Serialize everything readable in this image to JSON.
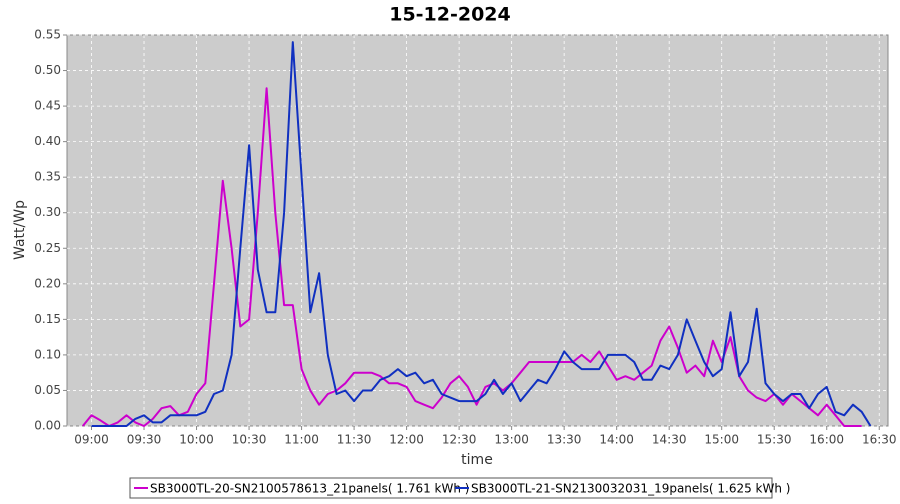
{
  "chart_data": {
    "type": "line",
    "title": "15-12-2024",
    "xlabel": "time",
    "ylabel": "Watt/Wp",
    "x": [
      "08:55",
      "09:00",
      "09:05",
      "09:10",
      "09:15",
      "09:20",
      "09:25",
      "09:30",
      "09:35",
      "09:40",
      "09:45",
      "09:50",
      "09:55",
      "10:00",
      "10:05",
      "10:10",
      "10:15",
      "10:20",
      "10:25",
      "10:30",
      "10:35",
      "10:40",
      "10:45",
      "10:50",
      "10:55",
      "11:00",
      "11:05",
      "11:10",
      "11:15",
      "11:20",
      "11:25",
      "11:30",
      "11:35",
      "11:40",
      "11:45",
      "11:50",
      "11:55",
      "12:00",
      "12:05",
      "12:10",
      "12:15",
      "12:20",
      "12:25",
      "12:30",
      "12:35",
      "12:40",
      "12:45",
      "12:50",
      "12:55",
      "13:00",
      "13:05",
      "13:10",
      "13:15",
      "13:20",
      "13:25",
      "13:30",
      "13:35",
      "13:40",
      "13:45",
      "13:50",
      "13:55",
      "14:00",
      "14:05",
      "14:10",
      "14:15",
      "14:20",
      "14:25",
      "14:30",
      "14:35",
      "14:40",
      "14:45",
      "14:50",
      "14:55",
      "15:00",
      "15:05",
      "15:10",
      "15:15",
      "15:20",
      "15:25",
      "15:30",
      "15:35",
      "15:40",
      "15:45",
      "15:50",
      "15:55",
      "16:00",
      "16:05",
      "16:10",
      "16:15",
      "16:20",
      "16:25"
    ],
    "series": [
      {
        "name": "SB3000TL-20-SN2100578613_21panels( 1.761 kWh )",
        "color": "#cc00cc",
        "values": [
          0,
          0.015,
          0.008,
          0,
          0.005,
          0.015,
          0.005,
          0,
          0.01,
          0.025,
          0.028,
          0.015,
          0.02,
          0.045,
          0.06,
          0.2,
          0.345,
          0.25,
          0.14,
          0.15,
          0.3,
          0.475,
          0.3,
          0.17,
          0.17,
          0.08,
          0.05,
          0.03,
          0.045,
          0.05,
          0.06,
          0.075,
          0.075,
          0.075,
          0.07,
          0.06,
          0.06,
          0.055,
          0.035,
          0.03,
          0.025,
          0.04,
          0.06,
          0.07,
          0.055,
          0.03,
          0.055,
          0.06,
          0.05,
          0.06,
          0.075,
          0.09,
          0.09,
          0.09,
          0.09,
          0.09,
          0.09,
          0.1,
          0.09,
          0.105,
          0.085,
          0.065,
          0.07,
          0.065,
          0.075,
          0.085,
          0.12,
          0.14,
          0.11,
          0.075,
          0.085,
          0.07,
          0.12,
          0.09,
          0.125,
          0.07,
          0.05,
          0.04,
          0.035,
          0.045,
          0.03,
          0.045,
          0.035,
          0.025,
          0.015,
          0.03,
          0.015,
          0,
          0,
          0,
          null
        ]
      },
      {
        "name": "SB3000TL-21-SN2130032031_19panels( 1.625 kWh )",
        "color": "#1030c0",
        "values": [
          null,
          0,
          0,
          0,
          0,
          0,
          0.01,
          0.015,
          0.005,
          0.005,
          0.015,
          0.015,
          0.015,
          0.015,
          0.02,
          0.045,
          0.05,
          0.1,
          0.25,
          0.395,
          0.22,
          0.16,
          0.16,
          0.3,
          0.54,
          0.35,
          0.16,
          0.215,
          0.1,
          0.045,
          0.05,
          0.035,
          0.05,
          0.05,
          0.065,
          0.07,
          0.08,
          0.07,
          0.075,
          0.06,
          0.065,
          0.045,
          0.04,
          0.035,
          0.035,
          0.035,
          0.045,
          0.065,
          0.045,
          0.06,
          0.035,
          0.05,
          0.065,
          0.06,
          0.08,
          0.105,
          0.09,
          0.08,
          0.08,
          0.08,
          0.1,
          0.1,
          0.1,
          0.09,
          0.065,
          0.065,
          0.085,
          0.08,
          0.1,
          0.15,
          0.12,
          0.09,
          0.07,
          0.08,
          0.16,
          0.07,
          0.09,
          0.165,
          0.06,
          0.045,
          0.035,
          0.045,
          0.045,
          0.025,
          0.045,
          0.055,
          0.02,
          0.015,
          0.03,
          0.02,
          0
        ]
      }
    ],
    "xlim": [
      "08:46",
      "16:35"
    ],
    "xticks": [
      "09:00",
      "09:30",
      "10:00",
      "10:30",
      "11:00",
      "11:30",
      "12:00",
      "12:30",
      "13:00",
      "13:30",
      "14:00",
      "14:30",
      "15:00",
      "15:30",
      "16:00",
      "16:30"
    ],
    "ylim": [
      0,
      0.55
    ],
    "yticks": [
      {
        "value": 0,
        "label": "0.00"
      },
      0.05,
      {
        "value": 0.1,
        "label": "0.10"
      },
      0.15,
      {
        "value": 0.2,
        "label": "0.20"
      },
      0.25,
      {
        "value": 0.3,
        "label": "0.30"
      },
      0.35,
      {
        "value": 0.4,
        "label": "0.40"
      },
      0.45,
      {
        "value": 0.5,
        "label": "0.50"
      },
      0.55
    ],
    "grid": true,
    "legend": "bottom"
  }
}
